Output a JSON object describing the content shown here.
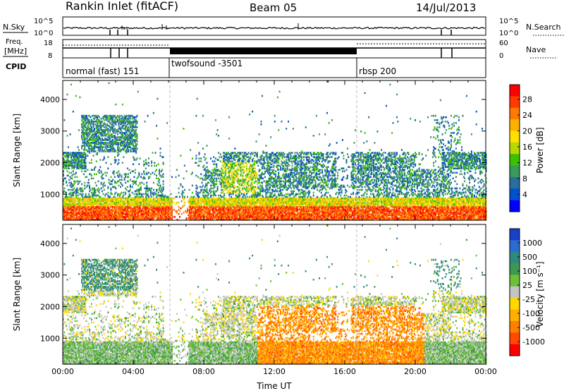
{
  "header": {
    "station": "Rankin Inlet (fitACF)",
    "beam": "Beam 05",
    "date": "14/Jul/2013"
  },
  "noise_panel": {
    "left_label": "N.Sky",
    "right_label": "N.Search",
    "left_ticks": [
      "10^5",
      "10^0"
    ],
    "right_ticks": [
      "10^5",
      "10^0"
    ]
  },
  "freq_panel": {
    "left_label_1": "Freq.",
    "left_label_2": "[MHz]",
    "left_ticks": [
      "18",
      "8"
    ],
    "right_label": "Nave",
    "right_ticks": [
      "60",
      "0"
    ]
  },
  "cpid_panel": {
    "label": "CPID",
    "segments": [
      {
        "name": "normal (fast) 151",
        "start_h": 0,
        "end_h": 6.0
      },
      {
        "name": "twofsound -3501",
        "start_h": 6.0,
        "end_h": 16.5
      },
      {
        "name": "rbsp 200",
        "start_h": 16.5,
        "end_h": 24
      }
    ]
  },
  "chart_data": [
    {
      "type": "heatmap",
      "name": "power",
      "xlabel": "",
      "ylabel": "Slant Range [km]",
      "xlim": [
        0,
        24
      ],
      "ylim": [
        180,
        4600
      ],
      "yticks": [
        1000,
        2000,
        3000,
        4000
      ],
      "colorbar": {
        "label": "Power [dB]",
        "ticks": [
          "28",
          "24",
          "20",
          "16",
          "12",
          "8",
          "4"
        ],
        "colors": [
          "#ff0000",
          "#ff3a00",
          "#ff7a00",
          "#ffb000",
          "#ffe000",
          "#b8d800",
          "#3cc000",
          "#3a9a5a",
          "#2a6e9a",
          "#0050d0",
          "#0000ff"
        ]
      }
    },
    {
      "type": "heatmap",
      "name": "velocity",
      "xlabel": "Time UT",
      "ylabel": "Slant Range [km]",
      "xlim": [
        0,
        24
      ],
      "ylim": [
        180,
        4600
      ],
      "xticks": [
        "00:00",
        "04:00",
        "08:00",
        "12:00",
        "16:00",
        "20:00",
        "00:00"
      ],
      "yticks": [
        1000,
        2000,
        3000,
        4000
      ],
      "colorbar": {
        "label": "Velocity [m s⁻¹]",
        "ticks": [
          "1000",
          "500",
          "100",
          "25",
          "-25",
          "-100",
          "-500",
          "-1000"
        ],
        "colors": [
          "#1a40c8",
          "#2c6cd0",
          "#2e8a7e",
          "#3c9a50",
          "#6cc038",
          "#c4c4c4",
          "#ffd800",
          "#ffb000",
          "#ff8000",
          "#ff4a00",
          "#ff0000"
        ]
      }
    }
  ]
}
